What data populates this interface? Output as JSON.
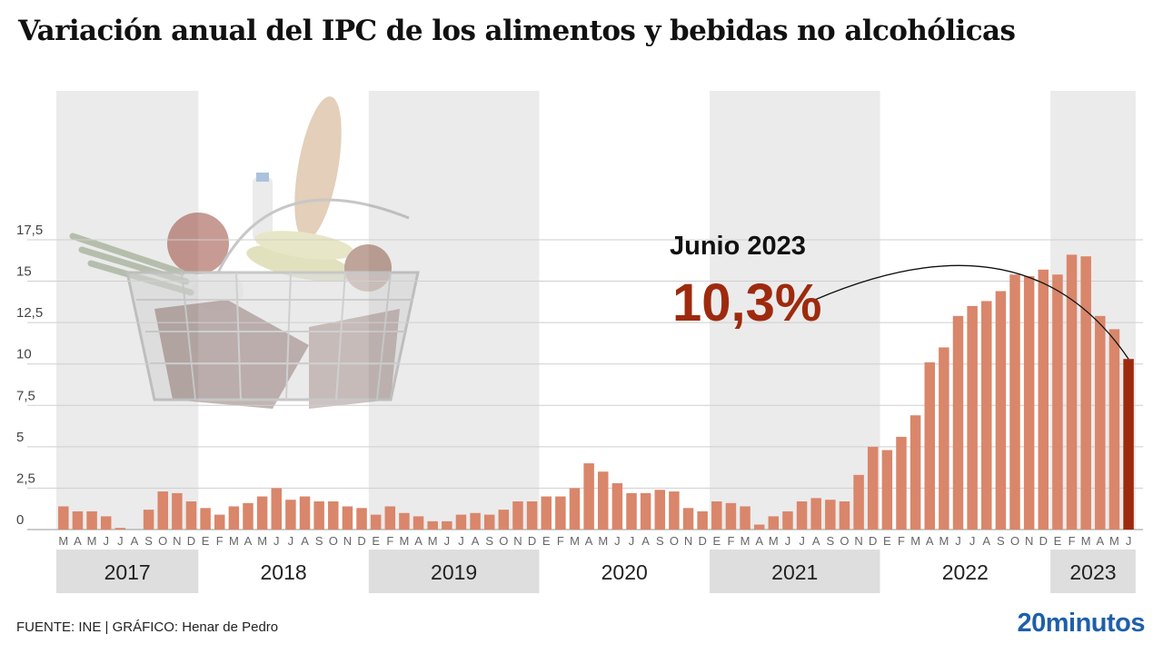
{
  "title": "Variación anual del IPC de los alimentos y bebidas no alcohólicas",
  "footer": {
    "source": "FUENTE: INE  |  GRÁFICO: Henar de Pedro"
  },
  "brand": {
    "name": "20minutos"
  },
  "colors": {
    "bar": "#d9866b",
    "highlight": "#9e2a0e",
    "band": "#ebebeb",
    "grid": "#cfcfcf",
    "brand": "#1f5fa8"
  },
  "decoration": {
    "image": "shopping-basket-photo"
  },
  "chart_data": {
    "type": "bar",
    "title": "Variación anual del IPC de los alimentos y bebidas no alcohólicas",
    "xlabel": "",
    "ylabel": "",
    "ylim": [
      0,
      17.5
    ],
    "y_ticks": [
      "0",
      "2,5",
      "5",
      "7,5",
      "10",
      "12,5",
      "15",
      "17,5"
    ],
    "y_tick_values": [
      0,
      2.5,
      5,
      7.5,
      10,
      12.5,
      15,
      17.5
    ],
    "grid": true,
    "categories": [
      "M",
      "A",
      "M",
      "J",
      "J",
      "A",
      "S",
      "O",
      "N",
      "D",
      "E",
      "F",
      "M",
      "A",
      "M",
      "J",
      "J",
      "A",
      "S",
      "O",
      "N",
      "D",
      "E",
      "F",
      "M",
      "A",
      "M",
      "J",
      "J",
      "A",
      "S",
      "O",
      "N",
      "D",
      "E",
      "F",
      "M",
      "A",
      "M",
      "J",
      "J",
      "A",
      "S",
      "O",
      "N",
      "D",
      "E",
      "F",
      "M",
      "A",
      "M",
      "J",
      "J",
      "A",
      "S",
      "O",
      "N",
      "D",
      "E",
      "F",
      "M",
      "A",
      "M",
      "J",
      "J",
      "A",
      "S",
      "O",
      "N",
      "D",
      "E",
      "F",
      "M",
      "A",
      "M",
      "J"
    ],
    "values": [
      1.4,
      1.1,
      1.1,
      0.8,
      0.1,
      0.0,
      1.2,
      2.3,
      2.2,
      1.7,
      1.3,
      0.9,
      1.4,
      1.6,
      2.0,
      2.5,
      1.8,
      2.0,
      1.7,
      1.7,
      1.4,
      1.3,
      0.9,
      1.4,
      1.0,
      0.8,
      0.5,
      0.5,
      0.9,
      1.0,
      0.9,
      1.2,
      1.7,
      1.7,
      2.0,
      2.0,
      2.5,
      4.0,
      3.5,
      2.8,
      2.2,
      2.2,
      2.4,
      2.3,
      1.3,
      1.1,
      1.7,
      1.6,
      1.4,
      0.3,
      0.8,
      1.1,
      1.7,
      1.9,
      1.8,
      1.7,
      3.3,
      5.0,
      4.8,
      5.6,
      6.9,
      10.1,
      11.0,
      12.9,
      13.5,
      13.8,
      14.4,
      15.4,
      15.3,
      15.7,
      15.4,
      16.6,
      16.5,
      12.9,
      12.1,
      10.3
    ],
    "years": [
      {
        "label": "2017",
        "start": 0,
        "end": 9,
        "shaded": true
      },
      {
        "label": "2018",
        "start": 10,
        "end": 21,
        "shaded": false
      },
      {
        "label": "2019",
        "start": 22,
        "end": 33,
        "shaded": true
      },
      {
        "label": "2020",
        "start": 34,
        "end": 45,
        "shaded": false
      },
      {
        "label": "2021",
        "start": 46,
        "end": 57,
        "shaded": true
      },
      {
        "label": "2022",
        "start": 58,
        "end": 69,
        "shaded": false
      },
      {
        "label": "2023",
        "start": 70,
        "end": 75,
        "shaded": true
      }
    ],
    "highlight_index": 75,
    "annotation": {
      "label": "Junio 2023",
      "value": "10,3%"
    }
  }
}
